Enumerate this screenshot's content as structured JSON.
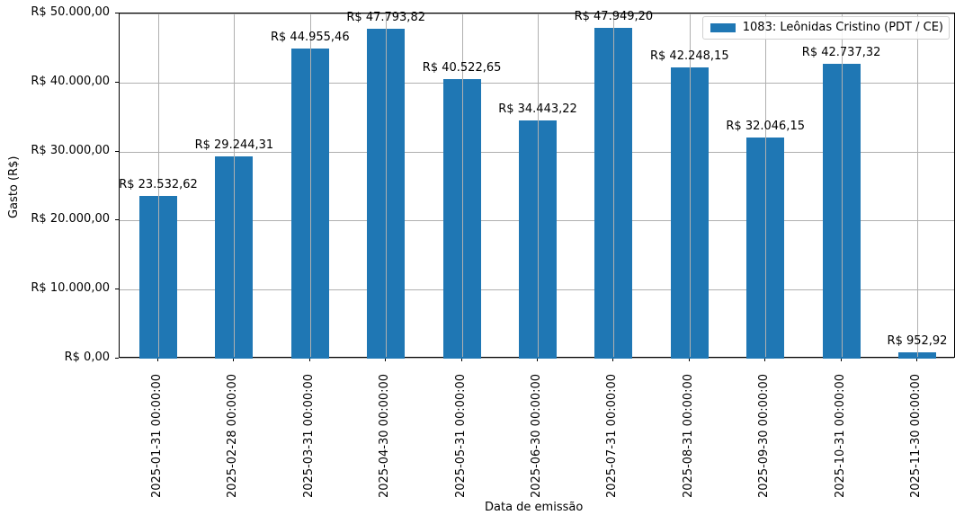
{
  "chart_data": {
    "type": "bar",
    "title": "",
    "xlabel": "Data de emissão",
    "ylabel": "Gasto (R$)",
    "ylim": [
      0,
      50000
    ],
    "grid": true,
    "legend_position": "upper right",
    "categories": [
      "2025-01-31 00:00:00",
      "2025-02-28 00:00:00",
      "2025-03-31 00:00:00",
      "2025-04-30 00:00:00",
      "2025-05-31 00:00:00",
      "2025-06-30 00:00:00",
      "2025-07-31 00:00:00",
      "2025-08-31 00:00:00",
      "2025-09-30 00:00:00",
      "2025-10-31 00:00:00",
      "2025-11-30 00:00:00"
    ],
    "series": [
      {
        "name": "1083: Leônidas Cristino (PDT / CE)",
        "color": "#1f77b4",
        "values": [
          23532.62,
          29244.31,
          44955.46,
          47793.82,
          40522.65,
          34443.22,
          47949.2,
          42248.15,
          32046.15,
          42737.32,
          952.92
        ]
      }
    ],
    "value_labels": [
      "R$ 23.532,62",
      "R$ 29.244,31",
      "R$ 44.955,46",
      "R$ 47.793,82",
      "R$ 40.522,65",
      "R$ 34.443,22",
      "R$ 47.949,20",
      "R$ 42.248,15",
      "R$ 32.046,15",
      "R$ 42.737,32",
      "R$ 952,92"
    ],
    "yticks": [
      0,
      10000,
      20000,
      30000,
      40000,
      50000
    ],
    "ytick_labels": [
      "R$ 0,00",
      "R$ 10.000,00",
      "R$ 20.000,00",
      "R$ 30.000,00",
      "R$ 40.000,00",
      "R$ 50.000,00"
    ]
  }
}
